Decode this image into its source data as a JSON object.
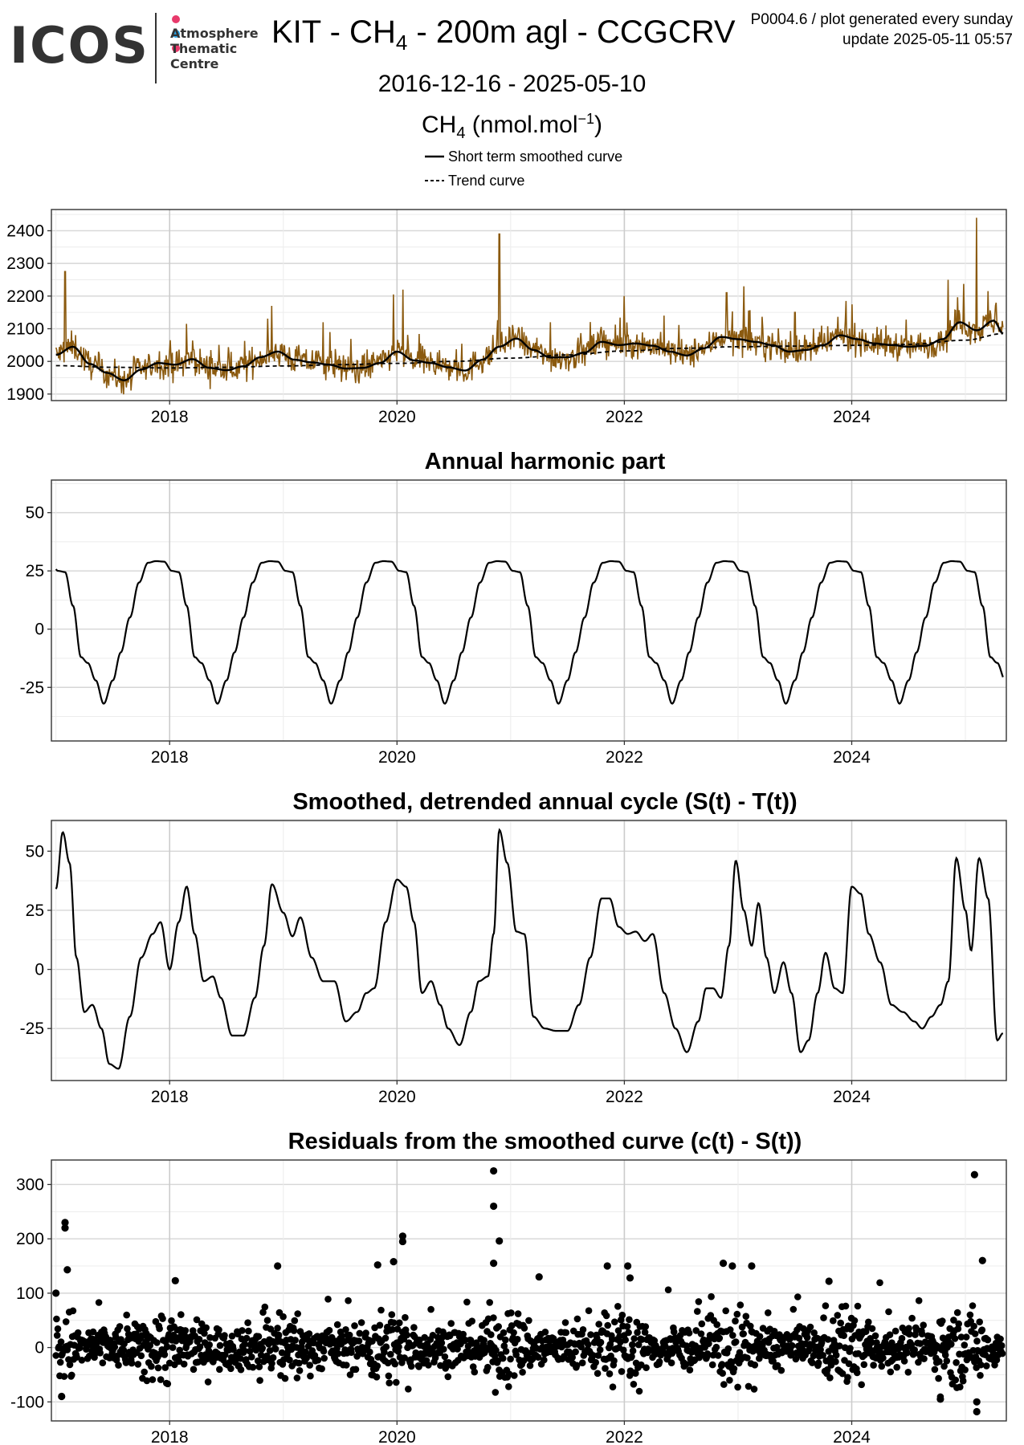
{
  "header": {
    "logo": {
      "word": "ICOS",
      "subtitle": [
        "Atmosphere",
        "Thematic",
        "Centre"
      ],
      "dot_colors": [
        "#e8396b",
        "#2aa2e4",
        "#e8396b"
      ]
    },
    "title": {
      "prefix": "KIT - CH",
      "subscript": "4",
      "suffix": " - 200m agl - CCGCRV"
    },
    "meta_line1": "P0004.6 / plot generated every sunday",
    "meta_line2": "update  2025-05-11 05:57",
    "date_range": "2016-12-16 - 2025-05-10",
    "unit": {
      "prefix": "CH",
      "subscript": "4",
      "middle": " (nmol.mol",
      "superscript": "−1",
      "suffix": ")"
    },
    "legend": [
      {
        "label": "Short term smoothed curve",
        "style": "solid"
      },
      {
        "label": "Trend curve",
        "style": "dashed"
      }
    ]
  },
  "colors": {
    "observations": "#8b5a0f",
    "curve": "#000000",
    "grid": "#d9d9d9",
    "panel_border": "#333333"
  },
  "chart_data": [
    {
      "type": "line",
      "id": "concentration",
      "title": "",
      "x_range": [
        2016.96,
        2025.36
      ],
      "y_range": [
        1880,
        2465
      ],
      "x_ticks": [
        2018,
        2020,
        2022,
        2024
      ],
      "x_tick_labels": [
        "2018",
        "2020",
        "2022",
        "2024"
      ],
      "y_ticks": [
        1900,
        2000,
        2100,
        2200,
        2300,
        2400
      ],
      "y_tick_labels": [
        "1900",
        "2000",
        "2100",
        "2200",
        "2300",
        "2400"
      ],
      "grid": true,
      "series": [
        {
          "name": "Short term smoothed curve",
          "style": "solid",
          "x": [
            2017.0,
            2017.15,
            2017.3,
            2017.45,
            2017.6,
            2017.75,
            2017.9,
            2018.05,
            2018.2,
            2018.35,
            2018.5,
            2018.65,
            2018.8,
            2018.95,
            2019.1,
            2019.25,
            2019.4,
            2019.55,
            2019.7,
            2019.85,
            2020.0,
            2020.15,
            2020.3,
            2020.45,
            2020.6,
            2020.75,
            2020.9,
            2021.05,
            2021.2,
            2021.35,
            2021.5,
            2021.65,
            2021.8,
            2021.95,
            2022.1,
            2022.25,
            2022.4,
            2022.55,
            2022.7,
            2022.85,
            2023.0,
            2023.15,
            2023.3,
            2023.45,
            2023.6,
            2023.75,
            2023.9,
            2024.05,
            2024.2,
            2024.35,
            2024.5,
            2024.65,
            2024.8,
            2024.95,
            2025.1,
            2025.25,
            2025.33
          ],
          "y": [
            2020,
            2045,
            1992,
            1965,
            1942,
            1975,
            1995,
            1990,
            2007,
            1980,
            1973,
            1985,
            2013,
            2030,
            2005,
            1997,
            1990,
            1978,
            1980,
            1995,
            2030,
            2003,
            1995,
            1982,
            1972,
            2005,
            2045,
            2070,
            2035,
            2012,
            2013,
            2027,
            2060,
            2050,
            2055,
            2048,
            2030,
            2018,
            2040,
            2075,
            2068,
            2060,
            2050,
            2030,
            2035,
            2050,
            2080,
            2068,
            2055,
            2050,
            2045,
            2048,
            2068,
            2120,
            2095,
            2125,
            2085
          ]
        },
        {
          "name": "Trend curve",
          "style": "dashed",
          "x": [
            2017.0,
            2017.5,
            2018.0,
            2018.5,
            2019.0,
            2019.5,
            2020.0,
            2020.5,
            2021.0,
            2021.5,
            2022.0,
            2022.5,
            2023.0,
            2023.5,
            2024.0,
            2024.5,
            2025.0,
            2025.33
          ],
          "y": [
            1987,
            1982,
            1980,
            1982,
            1986,
            1990,
            1994,
            2000,
            2010,
            2020,
            2032,
            2040,
            2045,
            2047,
            2049,
            2052,
            2065,
            2085
          ]
        }
      ],
      "observations_note": "observation trace: tall peaks in the raw series",
      "peaks": {
        "x": [
          2017.08,
          2018.15,
          2018.9,
          2019.35,
          2019.97,
          2020.05,
          2020.9,
          2021.35,
          2022.0,
          2022.35,
          2022.9,
          2023.05,
          2023.5,
          2023.95,
          2024.3,
          2024.85,
          2025.1,
          2025.2
        ],
        "y": [
          2275,
          2115,
          2170,
          2120,
          2205,
          2220,
          2390,
          2120,
          2200,
          2140,
          2210,
          2230,
          2150,
          2185,
          2110,
          2250,
          2440,
          2215
        ]
      }
    },
    {
      "type": "line",
      "id": "annual_harmonic",
      "title": "Annual harmonic part",
      "x_range": [
        2016.96,
        2025.36
      ],
      "y_range": [
        -48,
        64
      ],
      "x_ticks": [
        2018,
        2020,
        2022,
        2024
      ],
      "x_tick_labels": [
        "2018",
        "2020",
        "2022",
        "2024"
      ],
      "y_ticks": [
        -25,
        0,
        25,
        50
      ],
      "y_tick_labels": [
        "-25",
        "0",
        "25",
        "50"
      ],
      "grid": true,
      "one_year_shape": {
        "phase": [
          0.0,
          0.07,
          0.13,
          0.2,
          0.27,
          0.33,
          0.4,
          0.47,
          0.55,
          0.62,
          0.7,
          0.78,
          0.86,
          0.93,
          1.0
        ],
        "value": [
          29.0,
          25.0,
          24.5,
          10.0,
          -12.0,
          -14.5,
          -22.0,
          -32.0,
          -22.0,
          -10.0,
          5.0,
          20.0,
          28.5,
          29.2,
          29.0
        ],
        "peak_year_offset": 0.95
      },
      "x_start": 2017.0,
      "x_end": 2025.33
    },
    {
      "type": "line",
      "id": "detrended_cycle",
      "title": "Smoothed, detrended annual cycle (S(t) - T(t))",
      "x_range": [
        2016.96,
        2025.36
      ],
      "y_range": [
        -47,
        63
      ],
      "x_ticks": [
        2018,
        2020,
        2022,
        2024
      ],
      "x_tick_labels": [
        "2018",
        "2020",
        "2022",
        "2024"
      ],
      "y_ticks": [
        -25,
        0,
        25,
        50
      ],
      "y_tick_labels": [
        "-25",
        "0",
        "25",
        "50"
      ],
      "grid": true,
      "series": [
        {
          "name": "",
          "x": [
            2017.0,
            2017.06,
            2017.12,
            2017.18,
            2017.25,
            2017.32,
            2017.4,
            2017.47,
            2017.55,
            2017.65,
            2017.75,
            2017.85,
            2017.92,
            2018.0,
            2018.08,
            2018.15,
            2018.22,
            2018.3,
            2018.38,
            2018.45,
            2018.55,
            2018.65,
            2018.75,
            2018.83,
            2018.9,
            2019.0,
            2019.08,
            2019.15,
            2019.25,
            2019.35,
            2019.45,
            2019.55,
            2019.65,
            2019.73,
            2019.8,
            2019.9,
            2020.0,
            2020.08,
            2020.15,
            2020.22,
            2020.3,
            2020.38,
            2020.45,
            2020.55,
            2020.65,
            2020.72,
            2020.8,
            2020.85,
            2020.9,
            2020.97,
            2021.05,
            2021.12,
            2021.2,
            2021.3,
            2021.4,
            2021.5,
            2021.6,
            2021.7,
            2021.8,
            2021.87,
            2021.95,
            2022.03,
            2022.1,
            2022.18,
            2022.25,
            2022.35,
            2022.45,
            2022.55,
            2022.65,
            2022.72,
            2022.78,
            2022.85,
            2022.92,
            2022.98,
            2023.05,
            2023.12,
            2023.18,
            2023.25,
            2023.32,
            2023.4,
            2023.47,
            2023.55,
            2023.62,
            2023.7,
            2023.77,
            2023.85,
            2023.92,
            2024.0,
            2024.08,
            2024.15,
            2024.25,
            2024.35,
            2024.45,
            2024.55,
            2024.62,
            2024.7,
            2024.78,
            2024.85,
            2024.92,
            2025.0,
            2025.05,
            2025.12,
            2025.2,
            2025.28,
            2025.33
          ],
          "y": [
            34,
            58,
            45,
            5,
            -18,
            -15,
            -25,
            -40,
            -42,
            -20,
            5,
            15,
            20,
            0,
            20,
            35,
            15,
            -5,
            -3,
            -12,
            -28,
            -28,
            -12,
            10,
            36,
            24,
            14,
            22,
            5,
            -5,
            -5,
            -22,
            -18,
            -10,
            -8,
            20,
            38,
            35,
            20,
            -10,
            -5,
            -15,
            -25,
            -32,
            -18,
            -5,
            -3,
            15,
            59,
            45,
            16,
            15,
            -20,
            -25,
            -26,
            -26,
            -15,
            5,
            30,
            30,
            18,
            15,
            16,
            12,
            15,
            -10,
            -25,
            -35,
            -22,
            -8,
            -8,
            -12,
            10,
            46,
            25,
            10,
            28,
            5,
            -10,
            3,
            -10,
            -35,
            -30,
            -10,
            7,
            -8,
            -10,
            35,
            32,
            15,
            3,
            -15,
            -18,
            -22,
            -25,
            -20,
            -15,
            -5,
            47,
            25,
            8,
            47,
            30,
            -30,
            -27
          ]
        }
      ]
    },
    {
      "type": "scatter",
      "id": "residuals",
      "title": "Residuals from the smoothed curve (c(t) - S(t))",
      "x_range": [
        2016.96,
        2025.36
      ],
      "y_range": [
        -135,
        345
      ],
      "x_ticks": [
        2018,
        2020,
        2022,
        2024
      ],
      "x_tick_labels": [
        "2018",
        "2020",
        "2022",
        "2024"
      ],
      "y_ticks": [
        -100,
        0,
        100,
        200,
        300
      ],
      "y_tick_labels": [
        "-100",
        "0",
        "100",
        "200",
        "300"
      ],
      "grid": true,
      "points_note": "dense daily residuals mostly within -60..60, plus these outliers",
      "outliers": {
        "x": [
          2017.08,
          2017.08,
          2017.1,
          2017.0,
          2017.05,
          2018.05,
          2018.95,
          2019.83,
          2019.97,
          2020.05,
          2020.05,
          2020.85,
          2020.85,
          2020.9,
          2020.85,
          2021.25,
          2021.85,
          2022.03,
          2022.05,
          2022.87,
          2022.95,
          2023.12,
          2023.8,
          2025.08,
          2025.15,
          2025.1,
          2025.1,
          2024.78
        ],
        "y": [
          230,
          220,
          143,
          100,
          -90,
          123,
          150,
          152,
          158,
          205,
          195,
          325,
          260,
          196,
          155,
          130,
          150,
          150,
          128,
          155,
          150,
          150,
          122,
          318,
          160,
          -118,
          -100,
          -95
        ]
      }
    }
  ]
}
